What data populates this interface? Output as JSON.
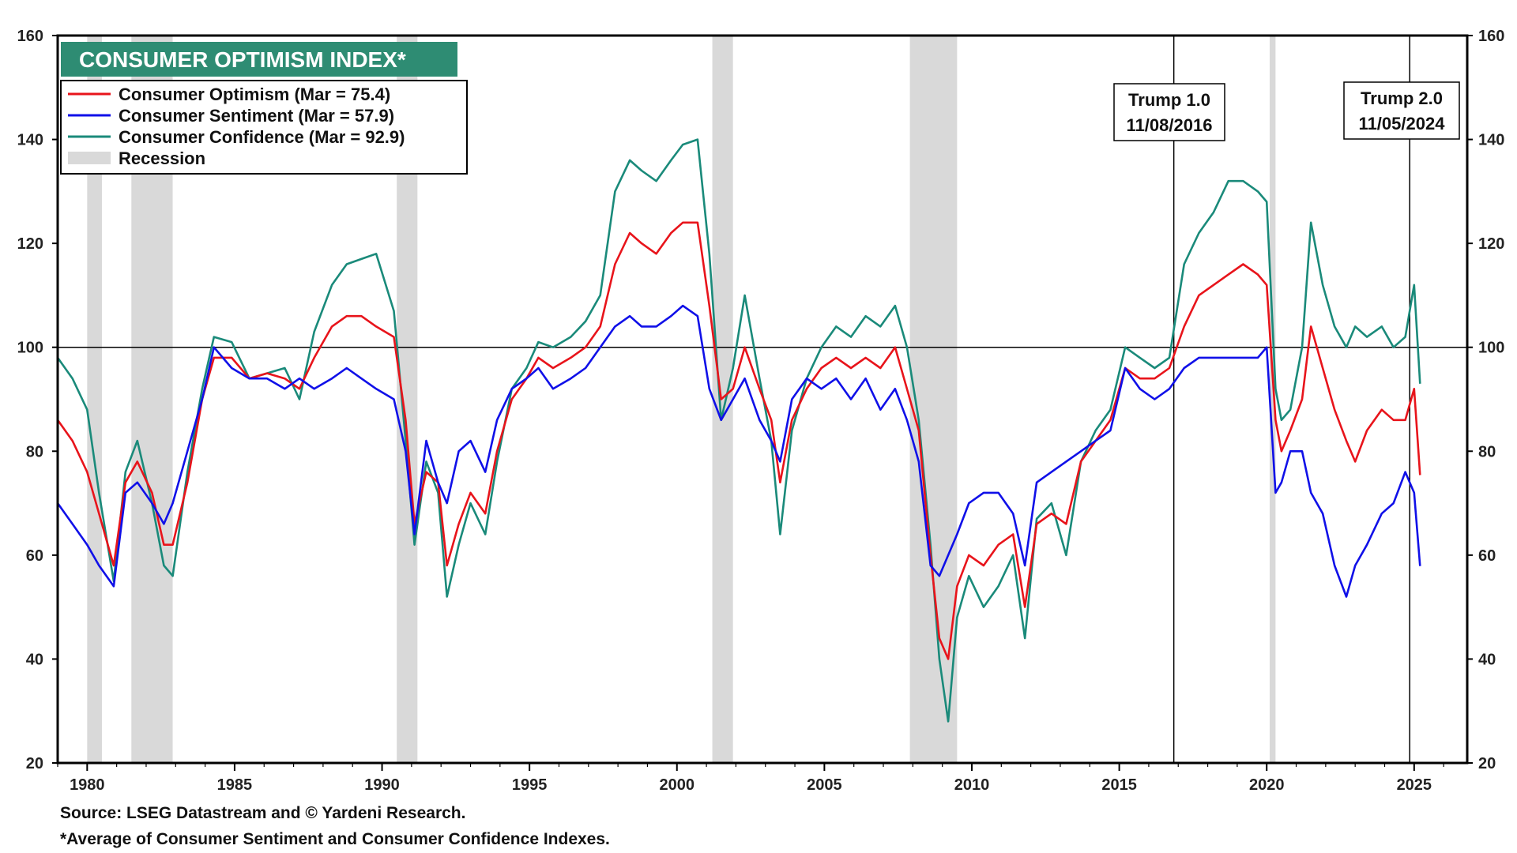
{
  "chart_data": {
    "type": "line",
    "title": "CONSUMER OPTIMISM INDEX*",
    "ylim": [
      20,
      160
    ],
    "xlim": [
      1979,
      2026.8
    ],
    "yticks": [
      20,
      40,
      60,
      80,
      100,
      120,
      140,
      160
    ],
    "xticks": [
      1980,
      1985,
      1990,
      1995,
      2000,
      2005,
      2010,
      2015,
      2020,
      2025
    ],
    "reference_line": 100,
    "legend": [
      {
        "label": "Consumer Optimism  (Mar = 75.4)",
        "color": "#e8141b",
        "kind": "line"
      },
      {
        "label": "Consumer Sentiment  (Mar = 57.9)",
        "color": "#1010e8",
        "kind": "line"
      },
      {
        "label": "Consumer Confidence (Mar = 92.9)",
        "color": "#1a8a7a",
        "kind": "line"
      },
      {
        "label": "Recession",
        "color": "#d9d9d9",
        "kind": "box"
      }
    ],
    "recessions": [
      [
        1980.0,
        1980.5
      ],
      [
        1981.5,
        1982.9
      ],
      [
        1990.5,
        1991.2
      ],
      [
        2001.2,
        2001.9
      ],
      [
        2007.9,
        2009.5
      ],
      [
        2020.1,
        2020.3
      ]
    ],
    "annotations": [
      {
        "label1": "Trump 1.0",
        "label2": "11/08/2016",
        "x": 2016.85
      },
      {
        "label1": "Trump 2.0",
        "label2": "11/05/2024",
        "x": 2024.85
      }
    ],
    "series": [
      {
        "name": "Consumer Confidence",
        "color": "#1a8a7a",
        "x": [
          1979.0,
          1979.5,
          1980.0,
          1980.4,
          1980.9,
          1981.3,
          1981.7,
          1982.2,
          1982.6,
          1982.9,
          1983.4,
          1983.9,
          1984.3,
          1984.9,
          1985.5,
          1986.1,
          1986.7,
          1987.2,
          1987.7,
          1988.3,
          1988.8,
          1989.3,
          1989.8,
          1990.4,
          1990.8,
          1991.1,
          1991.5,
          1991.9,
          1992.2,
          1992.6,
          1993.0,
          1993.5,
          1993.9,
          1994.4,
          1994.9,
          1995.3,
          1995.8,
          1996.4,
          1996.9,
          1997.4,
          1997.9,
          1998.4,
          1998.8,
          1999.3,
          1999.8,
          2000.2,
          2000.7,
          2001.1,
          2001.5,
          2001.9,
          2002.3,
          2002.8,
          2003.2,
          2003.5,
          2003.9,
          2004.4,
          2004.9,
          2005.4,
          2005.9,
          2006.4,
          2006.9,
          2007.4,
          2007.8,
          2008.2,
          2008.6,
          2008.9,
          2009.2,
          2009.5,
          2009.9,
          2010.4,
          2010.9,
          2011.4,
          2011.8,
          2012.2,
          2012.7,
          2013.2,
          2013.7,
          2014.2,
          2014.7,
          2015.2,
          2015.7,
          2016.2,
          2016.7,
          2017.2,
          2017.7,
          2018.2,
          2018.7,
          2019.2,
          2019.7,
          2020.0,
          2020.3,
          2020.5,
          2020.8,
          2021.2,
          2021.5,
          2021.9,
          2022.3,
          2022.7,
          2023.0,
          2023.4,
          2023.9,
          2024.3,
          2024.7,
          2025.0,
          2025.2
        ],
        "values": [
          98,
          94,
          88,
          72,
          55,
          76,
          82,
          70,
          58,
          56,
          76,
          92,
          102,
          101,
          94,
          95,
          96,
          90,
          103,
          112,
          116,
          117,
          118,
          107,
          82,
          62,
          78,
          72,
          52,
          62,
          70,
          64,
          78,
          92,
          96,
          101,
          100,
          102,
          105,
          110,
          130,
          136,
          134,
          132,
          136,
          139,
          140,
          118,
          86,
          96,
          110,
          94,
          82,
          64,
          84,
          94,
          100,
          104,
          102,
          106,
          104,
          108,
          100,
          86,
          62,
          40,
          28,
          48,
          56,
          50,
          54,
          60,
          44,
          67,
          70,
          60,
          78,
          84,
          88,
          100,
          98,
          96,
          98,
          116,
          122,
          126,
          132,
          132,
          130,
          128,
          92,
          86,
          88,
          100,
          124,
          112,
          104,
          100,
          104,
          102,
          104,
          100,
          102,
          112,
          93
        ]
      },
      {
        "name": "Consumer Optimism",
        "color": "#e8141b",
        "x": [
          1979.0,
          1979.5,
          1980.0,
          1980.4,
          1980.9,
          1981.3,
          1981.7,
          1982.2,
          1982.6,
          1982.9,
          1983.4,
          1983.9,
          1984.3,
          1984.9,
          1985.5,
          1986.1,
          1986.7,
          1987.2,
          1987.7,
          1988.3,
          1988.8,
          1989.3,
          1989.8,
          1990.4,
          1990.8,
          1991.1,
          1991.5,
          1991.9,
          1992.2,
          1992.6,
          1993.0,
          1993.5,
          1993.9,
          1994.4,
          1994.9,
          1995.3,
          1995.8,
          1996.4,
          1996.9,
          1997.4,
          1997.9,
          1998.4,
          1998.8,
          1999.3,
          1999.8,
          2000.2,
          2000.7,
          2001.1,
          2001.5,
          2001.9,
          2002.3,
          2002.8,
          2003.2,
          2003.5,
          2003.9,
          2004.4,
          2004.9,
          2005.4,
          2005.9,
          2006.4,
          2006.9,
          2007.4,
          2007.8,
          2008.2,
          2008.6,
          2008.9,
          2009.2,
          2009.5,
          2009.9,
          2010.4,
          2010.9,
          2011.4,
          2011.8,
          2012.2,
          2012.7,
          2013.2,
          2013.7,
          2014.2,
          2014.7,
          2015.2,
          2015.7,
          2016.2,
          2016.7,
          2017.2,
          2017.7,
          2018.2,
          2018.7,
          2019.2,
          2019.7,
          2020.0,
          2020.3,
          2020.5,
          2020.8,
          2021.2,
          2021.5,
          2021.9,
          2022.3,
          2022.7,
          2023.0,
          2023.4,
          2023.9,
          2024.3,
          2024.7,
          2025.0,
          2025.2
        ],
        "values": [
          86,
          82,
          76,
          68,
          58,
          74,
          78,
          72,
          62,
          62,
          74,
          90,
          98,
          98,
          94,
          95,
          94,
          92,
          98,
          104,
          106,
          106,
          104,
          102,
          86,
          66,
          76,
          74,
          58,
          66,
          72,
          68,
          80,
          90,
          94,
          98,
          96,
          98,
          100,
          104,
          116,
          122,
          120,
          118,
          122,
          124,
          124,
          108,
          90,
          92,
          100,
          92,
          86,
          74,
          86,
          92,
          96,
          98,
          96,
          98,
          96,
          100,
          92,
          84,
          60,
          44,
          40,
          54,
          60,
          58,
          62,
          64,
          50,
          66,
          68,
          66,
          78,
          82,
          86,
          96,
          94,
          94,
          96,
          104,
          110,
          112,
          114,
          116,
          114,
          112,
          86,
          80,
          84,
          90,
          104,
          96,
          88,
          82,
          78,
          84,
          88,
          86,
          86,
          92,
          75.4
        ]
      },
      {
        "name": "Consumer Sentiment",
        "color": "#1010e8",
        "x": [
          1979.0,
          1979.5,
          1980.0,
          1980.4,
          1980.9,
          1981.3,
          1981.7,
          1982.2,
          1982.6,
          1982.9,
          1983.4,
          1983.9,
          1984.3,
          1984.9,
          1985.5,
          1986.1,
          1986.7,
          1987.2,
          1987.7,
          1988.3,
          1988.8,
          1989.3,
          1989.8,
          1990.4,
          1990.8,
          1991.1,
          1991.5,
          1991.9,
          1992.2,
          1992.6,
          1993.0,
          1993.5,
          1993.9,
          1994.4,
          1994.9,
          1995.3,
          1995.8,
          1996.4,
          1996.9,
          1997.4,
          1997.9,
          1998.4,
          1998.8,
          1999.3,
          1999.8,
          2000.2,
          2000.7,
          2001.1,
          2001.5,
          2001.9,
          2002.3,
          2002.8,
          2003.2,
          2003.5,
          2003.9,
          2004.4,
          2004.9,
          2005.4,
          2005.9,
          2006.4,
          2006.9,
          2007.4,
          2007.8,
          2008.2,
          2008.6,
          2008.9,
          2009.2,
          2009.5,
          2009.9,
          2010.4,
          2010.9,
          2011.4,
          2011.8,
          2012.2,
          2012.7,
          2013.2,
          2013.7,
          2014.2,
          2014.7,
          2015.2,
          2015.7,
          2016.2,
          2016.7,
          2017.2,
          2017.7,
          2018.2,
          2018.7,
          2019.2,
          2019.7,
          2020.0,
          2020.3,
          2020.5,
          2020.8,
          2021.2,
          2021.5,
          2021.9,
          2022.3,
          2022.7,
          2023.0,
          2023.4,
          2023.9,
          2024.3,
          2024.7,
          2025.0,
          2025.2
        ],
        "values": [
          70,
          66,
          62,
          58,
          54,
          72,
          74,
          70,
          66,
          70,
          80,
          90,
          100,
          96,
          94,
          94,
          92,
          94,
          92,
          94,
          96,
          94,
          92,
          90,
          80,
          64,
          82,
          74,
          70,
          80,
          82,
          76,
          86,
          92,
          94,
          96,
          92,
          94,
          96,
          100,
          104,
          106,
          104,
          104,
          106,
          108,
          106,
          92,
          86,
          90,
          94,
          86,
          82,
          78,
          90,
          94,
          92,
          94,
          90,
          94,
          88,
          92,
          86,
          78,
          58,
          56,
          60,
          64,
          70,
          72,
          72,
          68,
          58,
          74,
          76,
          78,
          80,
          82,
          84,
          96,
          92,
          90,
          92,
          96,
          98,
          98,
          98,
          98,
          98,
          100,
          72,
          74,
          80,
          80,
          72,
          68,
          58,
          52,
          58,
          62,
          68,
          70,
          76,
          72,
          57.9
        ]
      }
    ]
  },
  "footer": {
    "source": "Source: LSEG Datastream and © Yardeni Research.",
    "note": "*Average of Consumer Sentiment and Consumer Confidence Indexes."
  }
}
